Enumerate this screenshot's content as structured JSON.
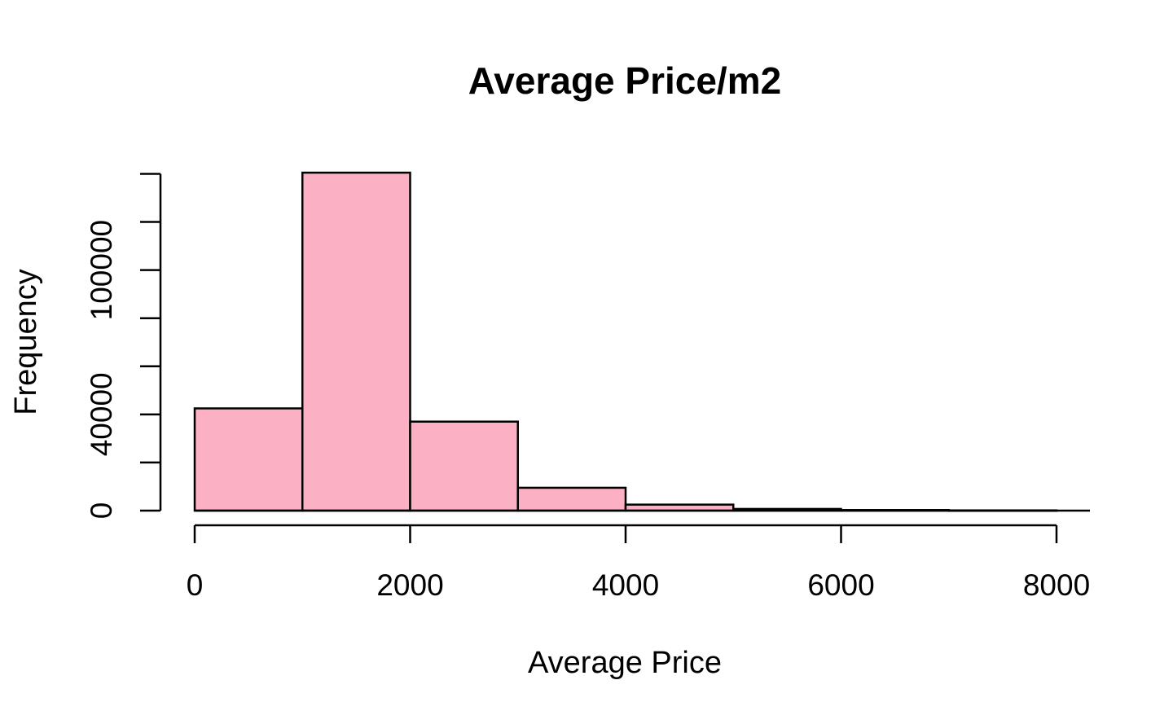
{
  "chart_data": {
    "type": "bar",
    "subtype": "histogram",
    "title": "Average Price/m2",
    "xlabel": "Average Price",
    "ylabel": "Frequency",
    "bins": [
      {
        "start": 0,
        "end": 1000,
        "value": 42500
      },
      {
        "start": 1000,
        "end": 2000,
        "value": 140500
      },
      {
        "start": 2000,
        "end": 3000,
        "value": 37000
      },
      {
        "start": 3000,
        "end": 4000,
        "value": 9500
      },
      {
        "start": 4000,
        "end": 5000,
        "value": 2500
      },
      {
        "start": 5000,
        "end": 6000,
        "value": 700
      },
      {
        "start": 6000,
        "end": 7000,
        "value": 250
      },
      {
        "start": 7000,
        "end": 8000,
        "value": 100
      }
    ],
    "x_ticks": [
      0,
      2000,
      4000,
      6000,
      8000
    ],
    "x_tick_labels": [
      "0",
      "2000",
      "4000",
      "6000",
      "8000"
    ],
    "y_ticks": [
      0,
      20000,
      40000,
      60000,
      80000,
      100000,
      120000,
      140000
    ],
    "y_tick_labels": [
      "0",
      "",
      "40000",
      "",
      "",
      "100000",
      "",
      ""
    ],
    "xlim": [
      0,
      8000
    ],
    "ylim": [
      0,
      140500
    ],
    "grid": false,
    "bar_color": "#FBB1C3",
    "edge_color": "#000000"
  }
}
